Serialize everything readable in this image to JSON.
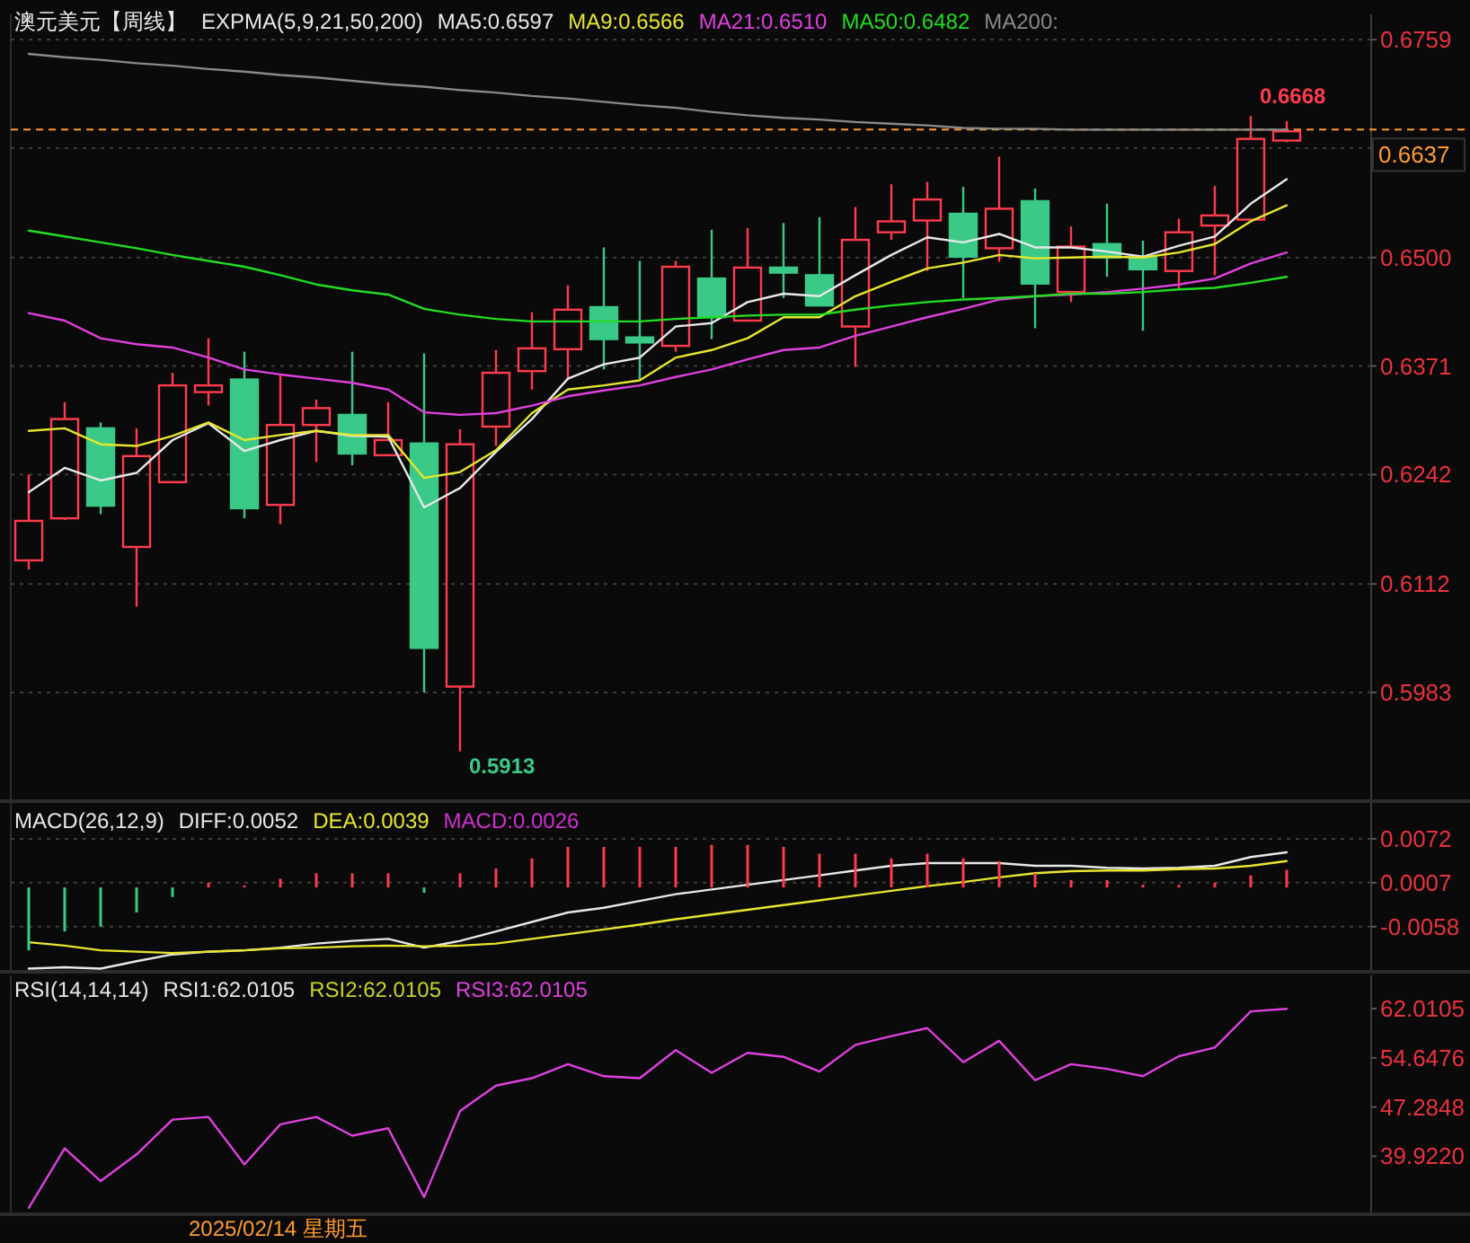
{
  "chart_data": [
    {
      "type": "candlestick",
      "title": "澳元美元【周线】",
      "legend_title": "EXPMA(5,9,21,50,200)",
      "legend": "top",
      "grid": "y",
      "tick_labels": "y",
      "categories": [
        null,
        null,
        null,
        null,
        null,
        null,
        null,
        null,
        null,
        null,
        null,
        null,
        null,
        null,
        null,
        null,
        null,
        null,
        null,
        null,
        null,
        null,
        null,
        null,
        null,
        null,
        null,
        null,
        null,
        null,
        null,
        null,
        null,
        null,
        null,
        null
      ],
      "ylim": [
        0.5856,
        0.6789
      ],
      "yticks": [
        0.6759,
        {
          "value": 0.663,
          "label": null
        },
        {
          "value": 0.65,
          "label": "0.6500"
        },
        0.6371,
        0.6242,
        0.6112,
        0.5983
      ],
      "ohlc": [
        [
          0.614,
          0.6242,
          0.6129,
          0.6187
        ],
        [
          0.619,
          0.6328,
          0.6188,
          0.6308
        ],
        [
          0.6297,
          0.6304,
          0.6195,
          0.6205
        ],
        [
          0.6156,
          0.6297,
          0.6085,
          0.6264
        ],
        [
          0.6233,
          0.6363,
          0.6233,
          0.6348
        ],
        [
          0.634,
          0.6404,
          0.6324,
          0.6348
        ],
        [
          0.6355,
          0.6388,
          0.619,
          0.6202
        ],
        [
          0.6206,
          0.6361,
          0.6183,
          0.6301
        ],
        [
          0.6301,
          0.6331,
          0.6257,
          0.6321
        ],
        [
          0.6313,
          0.6388,
          0.6253,
          0.6267
        ],
        [
          0.6265,
          0.6328,
          0.6265,
          0.6283
        ],
        [
          0.6279,
          0.6386,
          0.5983,
          0.6036
        ],
        [
          0.599,
          0.6296,
          0.5913,
          0.6278
        ],
        [
          0.6299,
          0.639,
          0.6276,
          0.6363
        ],
        [
          0.6365,
          0.6435,
          0.6343,
          0.6392
        ],
        [
          0.6391,
          0.6467,
          0.6354,
          0.6438
        ],
        [
          0.6441,
          0.6512,
          0.6367,
          0.6403
        ],
        [
          0.6405,
          0.6496,
          0.6355,
          0.6399
        ],
        [
          0.6395,
          0.6496,
          0.6388,
          0.6489
        ],
        [
          0.6475,
          0.6533,
          0.6403,
          0.6429
        ],
        [
          0.6425,
          0.6535,
          0.6425,
          0.6488
        ],
        [
          0.6488,
          0.6541,
          0.6452,
          0.6482
        ],
        [
          0.6479,
          0.6548,
          0.6443,
          0.6443
        ],
        [
          0.6418,
          0.656,
          0.637,
          0.6521
        ],
        [
          0.653,
          0.6587,
          0.6521,
          0.6543
        ],
        [
          0.6544,
          0.659,
          0.6484,
          0.6569
        ],
        [
          0.6552,
          0.6584,
          0.6452,
          0.6501
        ],
        [
          0.6511,
          0.662,
          0.6495,
          0.6558
        ],
        [
          0.6567,
          0.6582,
          0.6416,
          0.6469
        ],
        [
          0.6459,
          0.6537,
          0.6447,
          0.6513
        ],
        [
          0.6516,
          0.6564,
          0.6477,
          0.65
        ],
        [
          0.65,
          0.652,
          0.6413,
          0.6486
        ],
        [
          0.6484,
          0.6546,
          0.6462,
          0.653
        ],
        [
          0.6538,
          0.6585,
          0.6479,
          0.655
        ],
        [
          0.6545,
          0.6668,
          0.6545,
          0.6641
        ],
        [
          0.6639,
          0.6662,
          0.6637,
          0.665
        ]
      ],
      "colors": [
        "#ff3b4e",
        "#ff3b4e",
        "#3ac987",
        "#ff3b4e",
        "#ff3b4e",
        "#ff3b4e",
        "#3ac987",
        "#ff3b4e",
        "#ff3b4e",
        "#3ac987",
        "#ff3b4e",
        "#3ac987",
        "#ff3b4e",
        "#ff3b4e",
        "#ff3b4e",
        "#ff3b4e",
        "#3ac987",
        "#3ac987",
        "#ff3b4e",
        "#3ac987",
        "#ff3b4e",
        "#3ac987",
        "#3ac987",
        "#ff3b4e",
        "#ff3b4e",
        "#ff3b4e",
        "#3ac987",
        "#ff3b4e",
        "#3ac987",
        "#ff3b4e",
        "#3ac987",
        "#3ac987",
        "#ff3b4e",
        "#ff3b4e",
        "#ff3b4e",
        "#ff3b4e"
      ],
      "series": [
        {
          "name": "MA5:0.6597",
          "type": "line",
          "color": "#e8e8e8",
          "values": [
            0.6221,
            0.625,
            0.6235,
            0.6244,
            0.6283,
            0.6303,
            0.627,
            0.6283,
            0.6294,
            0.6288,
            0.6287,
            0.6203,
            0.6226,
            0.6269,
            0.6308,
            0.6356,
            0.6373,
            0.6381,
            0.6418,
            0.6422,
            0.6447,
            0.6457,
            0.6454,
            0.6479,
            0.6503,
            0.6524,
            0.6518,
            0.6528,
            0.6512,
            0.6512,
            0.6507,
            0.6501,
            0.6514,
            0.6525,
            0.6564,
            0.6593
          ]
        },
        {
          "name": "MA9:0.6566",
          "type": "line",
          "color": "#e6e62e",
          "values": [
            0.6294,
            0.6297,
            0.6278,
            0.6276,
            0.6288,
            0.6304,
            0.6283,
            0.6289,
            0.6294,
            0.6289,
            0.6289,
            0.6238,
            0.6245,
            0.6271,
            0.6315,
            0.6343,
            0.6348,
            0.6354,
            0.6381,
            0.639,
            0.6404,
            0.6429,
            0.6429,
            0.6454,
            0.6471,
            0.6487,
            0.6494,
            0.6503,
            0.6499,
            0.65,
            0.6501,
            0.65,
            0.6506,
            0.6516,
            0.6543,
            0.6562
          ]
        },
        {
          "name": "MA21:0.6510",
          "type": "line",
          "color": "#e040e0",
          "values": [
            0.6434,
            0.6425,
            0.6404,
            0.6397,
            0.6393,
            0.6381,
            0.6367,
            0.6361,
            0.6356,
            0.6351,
            0.6343,
            0.6316,
            0.6313,
            0.6315,
            0.6324,
            0.6335,
            0.6342,
            0.6348,
            0.6358,
            0.6367,
            0.6379,
            0.639,
            0.6393,
            0.6407,
            0.6418,
            0.6429,
            0.6439,
            0.645,
            0.6454,
            0.6456,
            0.6459,
            0.6463,
            0.6468,
            0.6475,
            0.6493,
            0.6506
          ]
        },
        {
          "name": "MA50:0.6482",
          "type": "line",
          "color": "#22dd22",
          "values": [
            0.6532,
            0.6525,
            0.6518,
            0.6511,
            0.6503,
            0.6496,
            0.6489,
            0.6479,
            0.6468,
            0.6461,
            0.6456,
            0.6439,
            0.6432,
            0.6427,
            0.6424,
            0.6424,
            0.6424,
            0.6424,
            0.6427,
            0.6429,
            0.6431,
            0.6432,
            0.6432,
            0.6438,
            0.6443,
            0.6447,
            0.645,
            0.6452,
            0.6454,
            0.6457,
            0.6457,
            0.6459,
            0.6462,
            0.6464,
            0.647,
            0.6477
          ]
        },
        {
          "name": "MA200:",
          "type": "line",
          "color": "#8a8a8a",
          "values": [
            0.6742,
            0.6738,
            0.6735,
            0.6731,
            0.6728,
            0.6724,
            0.6721,
            0.6717,
            0.6714,
            0.671,
            0.6706,
            0.6703,
            0.6699,
            0.6696,
            0.6692,
            0.6689,
            0.6685,
            0.6681,
            0.6678,
            0.6673,
            0.6669,
            0.6666,
            0.6664,
            0.6661,
            0.6659,
            0.6657,
            0.6654,
            0.6653,
            0.6653,
            0.6652,
            0.6652,
            0.6652,
            0.6652,
            0.6652,
            0.6652,
            0.6652
          ]
        }
      ],
      "ref_lines": [
        {
          "axis": "y",
          "value": 0.6652,
          "color": "#ff9a2e",
          "line_style": "dashed"
        }
      ],
      "annotations": [
        {
          "text": "0.6668",
          "y": 0.6668
        },
        "0.5913",
        "0.6637"
      ]
    },
    {
      "type": "bar",
      "legend_title": "MACD(26,12,9)",
      "legend": "top",
      "grid": "y",
      "tick_labels": "y",
      "categories": [
        null,
        null,
        null,
        null,
        null,
        null,
        null,
        null,
        null,
        null,
        null,
        null,
        null,
        null,
        null,
        null,
        null,
        null,
        null,
        null,
        null,
        null,
        null,
        null,
        null,
        null,
        null,
        null,
        null,
        null,
        null,
        null,
        null,
        null,
        null,
        null
      ],
      "ylim": [
        -0.0122,
        0.0125
      ],
      "yticks": [
        0.0072,
        0.0007,
        -0.0058
      ],
      "series": [
        {
          "name": "DIFF:0.0052",
          "type": "line",
          "color": "#e8e8e8",
          "values": [
            -0.012,
            -0.0118,
            -0.012,
            -0.0109,
            -0.0099,
            -0.0095,
            -0.0093,
            -0.0089,
            -0.0083,
            -0.0079,
            -0.0076,
            -0.0089,
            -0.0079,
            -0.0065,
            -0.0051,
            -0.0037,
            -0.003,
            -0.002,
            -0.001,
            -0.0003,
            0.0004,
            0.0011,
            0.0018,
            0.0025,
            0.0032,
            0.0036,
            0.0036,
            0.0036,
            0.0032,
            0.0032,
            0.0029,
            0.0028,
            0.0029,
            0.0032,
            0.0045,
            0.0052
          ]
        },
        {
          "name": "DEA:0.0039",
          "type": "line",
          "color": "#e6e62e",
          "values": [
            -0.0081,
            -0.0086,
            -0.0093,
            -0.0095,
            -0.0097,
            -0.0095,
            -0.0093,
            -0.009,
            -0.0089,
            -0.0087,
            -0.0086,
            -0.0087,
            -0.0086,
            -0.0083,
            -0.0076,
            -0.0069,
            -0.0062,
            -0.0055,
            -0.0047,
            -0.004,
            -0.0033,
            -0.0026,
            -0.0019,
            -0.0012,
            -0.0005,
            0.0002,
            0.0008,
            0.0015,
            0.0021,
            0.0024,
            0.0025,
            0.0025,
            0.0027,
            0.0028,
            0.0032,
            0.0039
          ]
        },
        {
          "name": "MACD:0.0026",
          "type": "bar",
          "color": "#d030d0",
          "colors": [
            "#3ac987",
            "#3ac987",
            "#3ac987",
            "#3ac987",
            "#3ac987",
            "#ff3b4e",
            "#ff3b4e",
            "#ff3b4e",
            "#ff3b4e",
            "#ff3b4e",
            "#ff3b4e",
            "#3ac987",
            "#ff3b4e",
            "#ff3b4e",
            "#ff3b4e",
            "#ff3b4e",
            "#ff3b4e",
            "#ff3b4e",
            "#ff3b4e",
            "#ff3b4e",
            "#ff3b4e",
            "#ff3b4e",
            "#ff3b4e",
            "#ff3b4e",
            "#ff3b4e",
            "#ff3b4e",
            "#ff3b4e",
            "#ff3b4e",
            "#ff3b4e",
            "#ff3b4e",
            "#ff3b4e",
            "#ff3b4e",
            "#ff3b4e",
            "#ff3b4e",
            "#ff3b4e",
            "#ff3b4e"
          ],
          "values": [
            -0.0093,
            -0.0065,
            -0.0058,
            -0.0037,
            -0.0014,
            0.0007,
            0.0003,
            0.0013,
            0.0021,
            0.0021,
            0.0021,
            -0.0008,
            0.0021,
            0.0028,
            0.0043,
            0.006,
            0.006,
            0.006,
            0.006,
            0.0063,
            0.0063,
            0.006,
            0.005,
            0.005,
            0.0043,
            0.005,
            0.0043,
            0.0039,
            0.0021,
            0.0011,
            0.0011,
            0.0004,
            0.0004,
            0.0007,
            0.0018,
            0.0026
          ]
        }
      ]
    },
    {
      "type": "line",
      "legend_title": "RSI(14,14,14)",
      "legend": "top",
      "tick_labels": "y",
      "categories": [
        null,
        null,
        null,
        null,
        null,
        null,
        null,
        null,
        null,
        null,
        null,
        null,
        null,
        null,
        null,
        null,
        null,
        null,
        null,
        null,
        null,
        null,
        null,
        null,
        null,
        null,
        null,
        null,
        null,
        null,
        null,
        null,
        null,
        null,
        null,
        null
      ],
      "ylim": [
        31.5,
        67.0
      ],
      "yticks": [
        62.0105,
        54.6476,
        47.2848,
        {
          "value": 39.922,
          "label": "39.9220"
        }
      ],
      "series": [
        {
          "name": "RSI1:62.0105",
          "color": "#e8e8e8",
          "values": [
            null,
            null,
            null,
            null,
            null,
            null,
            null,
            null,
            null,
            null,
            null,
            null,
            null,
            null,
            null,
            null,
            null,
            null,
            null,
            null,
            null,
            null,
            null,
            null,
            null,
            null,
            null,
            null,
            null,
            null,
            null,
            null,
            null,
            null,
            null,
            null
          ]
        },
        {
          "name": "RSI2:62.0105",
          "color": "#c8d22a",
          "values": [
            null,
            null,
            null,
            null,
            null,
            null,
            null,
            null,
            null,
            null,
            null,
            null,
            null,
            null,
            null,
            null,
            null,
            null,
            null,
            null,
            null,
            null,
            null,
            null,
            null,
            null,
            null,
            null,
            null,
            null,
            null,
            null,
            null,
            null,
            null,
            null
          ]
        },
        {
          "name": "RSI3:62.0105",
          "color": "#e040e0",
          "values": [
            32.2,
            41.1,
            36.2,
            40.2,
            45.4,
            45.8,
            38.7,
            44.7,
            45.8,
            43.0,
            44.1,
            33.8,
            46.7,
            50.5,
            51.6,
            53.7,
            51.9,
            51.6,
            55.8,
            52.4,
            55.4,
            54.8,
            52.6,
            56.6,
            57.9,
            59.1,
            54.0,
            57.2,
            51.3,
            53.7,
            53.0,
            51.9,
            54.9,
            56.2,
            61.6,
            62.0
          ]
        }
      ],
      "annotations": [
        "2025/02/14 星期五"
      ]
    }
  ]
}
